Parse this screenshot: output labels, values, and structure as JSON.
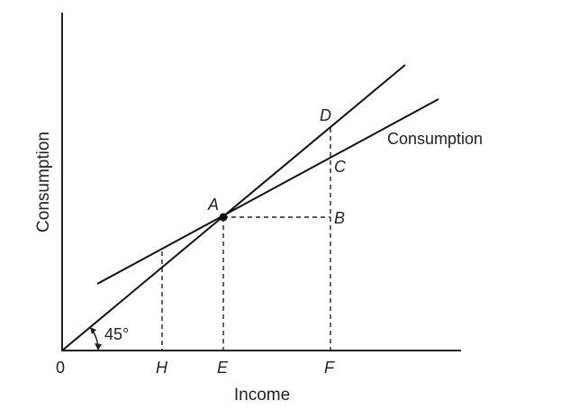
{
  "axes": {
    "x_label": "Income",
    "y_label": "Consumption",
    "origin_label": "0"
  },
  "angle_label": "45°",
  "curve_label": "Consumption",
  "points": {
    "A": "A",
    "B": "B",
    "C": "C",
    "D": "D",
    "E": "E",
    "F": "F",
    "H": "H"
  }
}
